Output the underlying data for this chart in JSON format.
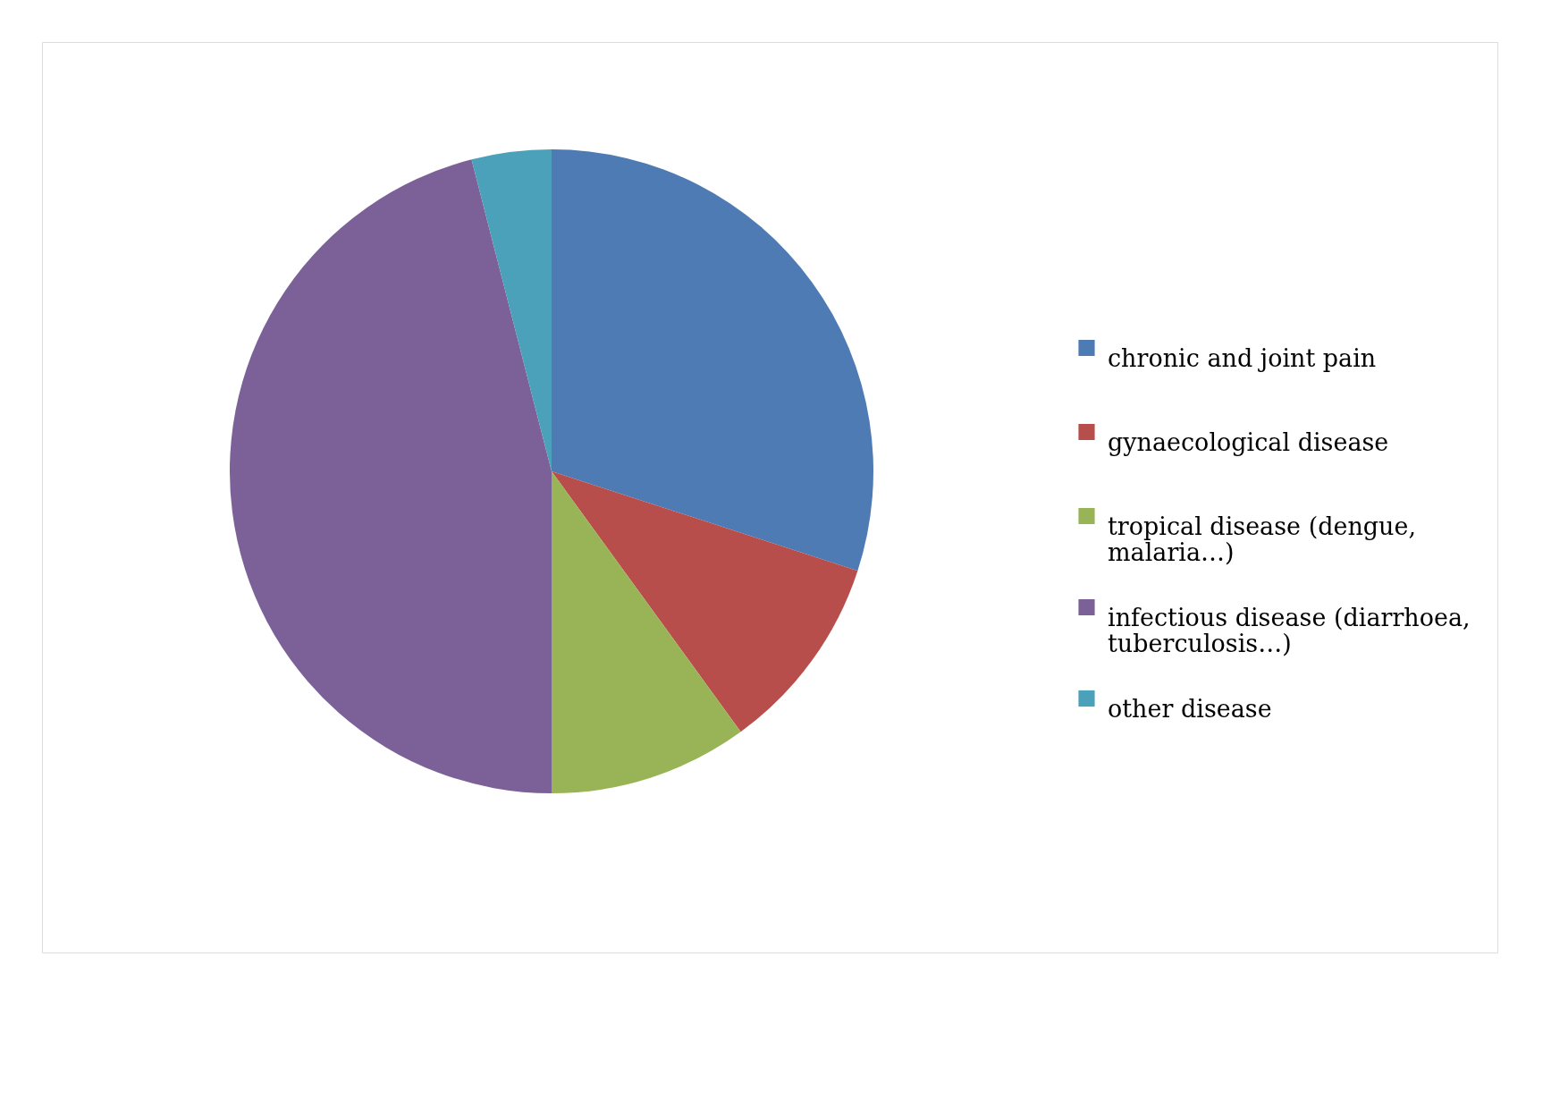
{
  "chart_data": {
    "type": "pie",
    "categories": [
      "chronic and joint pain",
      "gynaecological disease",
      "tropical disease (dengue, malaria…)",
      "infectious disease (diarrhoea, tuberculosis…)",
      "other disease"
    ],
    "values": [
      30,
      10,
      10,
      46,
      4
    ],
    "colors": [
      "#4e7bb3",
      "#b84e4b",
      "#98b456",
      "#7b6198",
      "#4aa1b9"
    ],
    "legend": "right"
  }
}
